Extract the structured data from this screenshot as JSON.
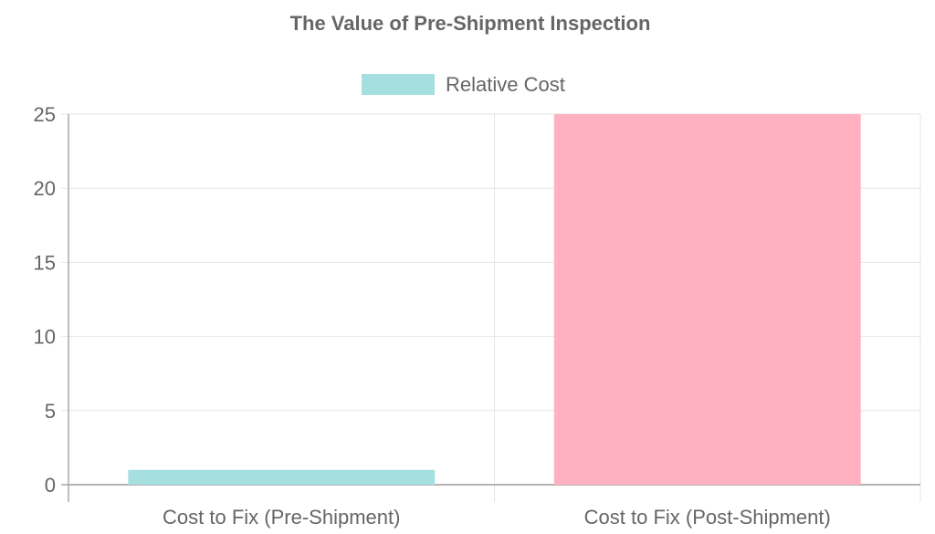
{
  "chart_data": {
    "type": "bar",
    "title": "The Value of Pre-Shipment Inspection",
    "categories": [
      "Cost to Fix (Pre-Shipment)",
      "Cost to Fix (Post-Shipment)"
    ],
    "series": [
      {
        "name": "Relative Cost",
        "values": [
          1,
          25
        ]
      }
    ],
    "bar_colors": [
      "#a5dfdf",
      "#ffb1c1"
    ],
    "legend": {
      "label": "Relative Cost",
      "color": "#a5dfdf",
      "placement": "top"
    },
    "xlabel": "",
    "ylabel": "",
    "ylim": [
      0,
      25
    ],
    "yticks": [
      0,
      5,
      10,
      15,
      20,
      25
    ],
    "grid": true
  }
}
